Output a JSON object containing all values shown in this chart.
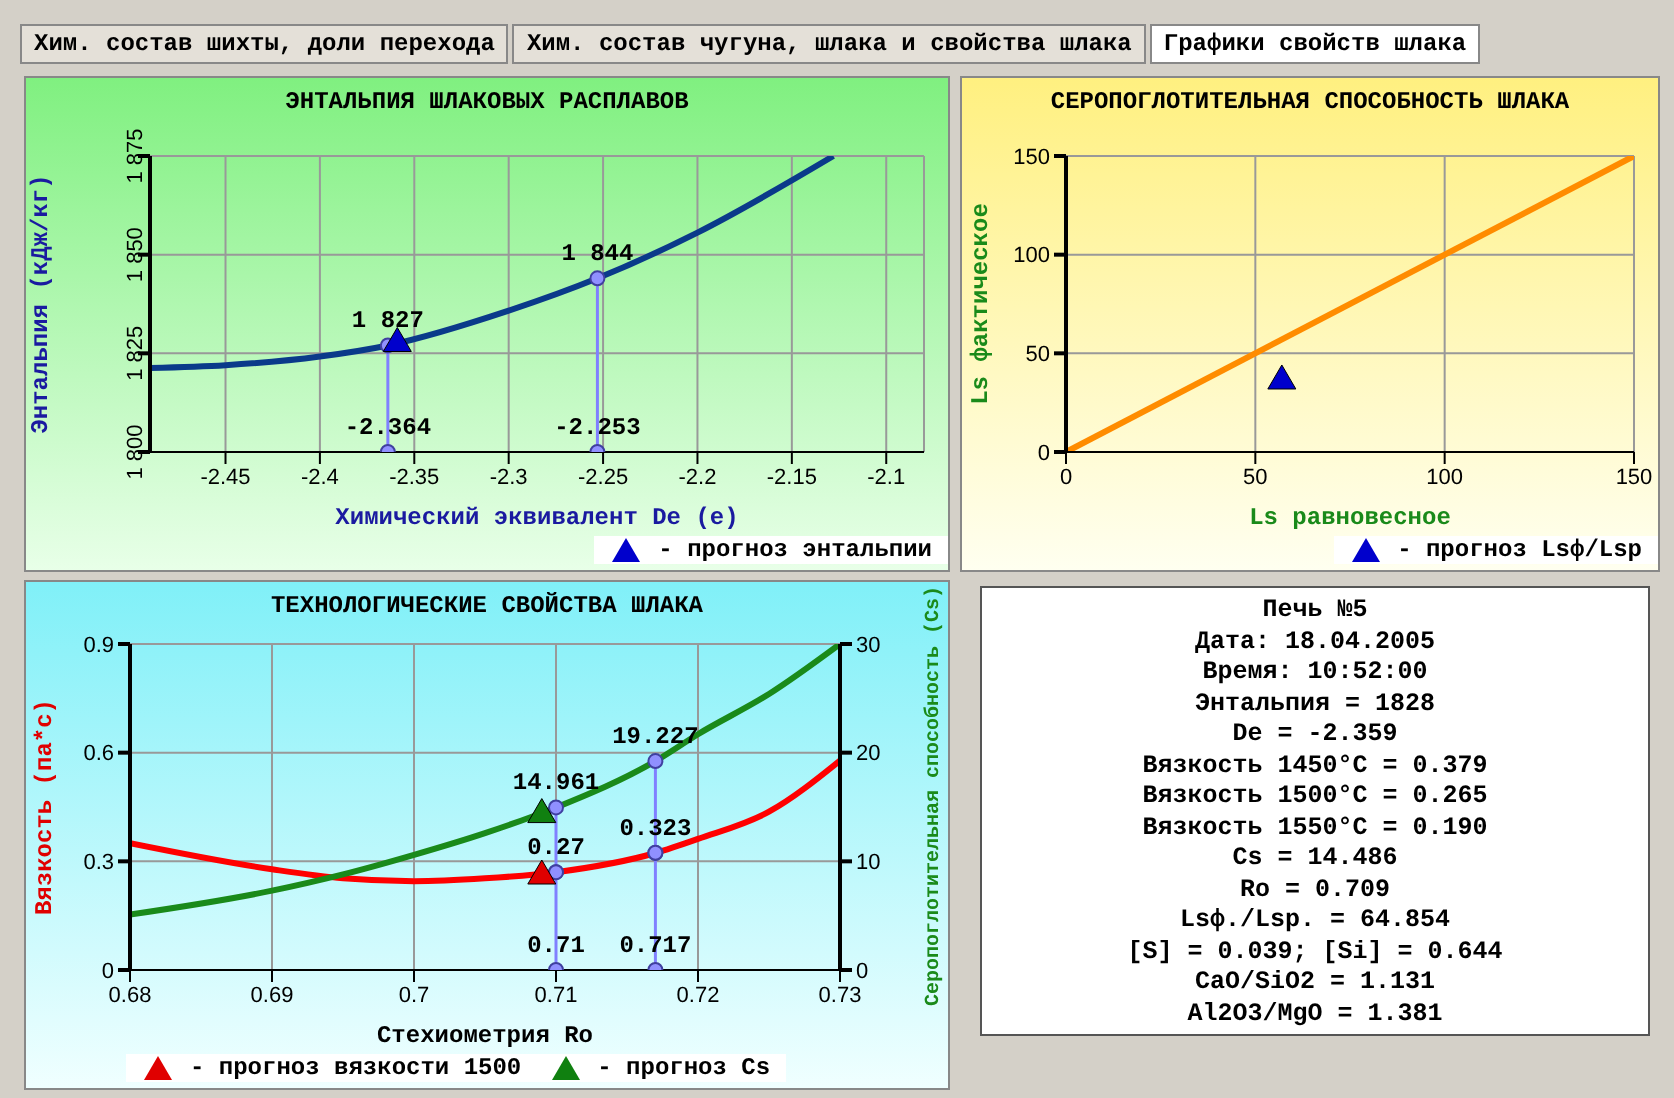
{
  "chart_data": [
    {
      "type": "other",
      "annotations": [
        "Хим. состав шихты, доли перехода",
        "Хим. состав чугуна, шлака и свойства шлака",
        "Графики свойств шлака"
      ]
    },
    {
      "type": "line",
      "title": "ЭНТАЛЬПИЯ ШЛАКОВЫХ РАСПЛАВОВ",
      "annotations": [
        {
          "text": "-2.364",
          "x": -2.364,
          "y": 1800
        },
        {
          "text": "-2.253",
          "x": -2.253,
          "y": 1800
        }
      ],
      "xlabel": "Химический эквивалент De (e)",
      "ylabel": "Энтальпия (кДж/кг)",
      "xlim": [
        -2.49,
        -2.08
      ],
      "xticks": [
        -2.45,
        -2.4,
        -2.35,
        -2.3,
        -2.25,
        -2.2,
        -2.15,
        -2.1
      ],
      "ylim": [
        1800,
        1875
      ],
      "yticks": [
        {
          "value": 1800,
          "label": "1 800"
        },
        {
          "value": 1825,
          "label": "1 825"
        },
        {
          "value": 1850,
          "label": "1 850"
        },
        {
          "value": 1875,
          "label": "1 875"
        }
      ],
      "grid": true,
      "legend": "bottom right",
      "series": [
        {
          "color": "#0a3a8a",
          "marker": "none",
          "x": [
            -2.49,
            -2.45,
            -2.4,
            -2.364,
            -2.3,
            -2.253,
            -2.2,
            -2.128
          ],
          "values": [
            1821.3,
            1822,
            1824.2,
            1827,
            1835.8,
            1844,
            1855.6,
            1875
          ]
        },
        {
          "color": "#8080ff",
          "marker": "circle",
          "x": [
            -2.364,
            -2.364
          ],
          "values": [
            1800,
            1827
          ],
          "value_labels": [
            null,
            "1 827"
          ]
        },
        {
          "color": "#8080ff",
          "marker": "circle",
          "x": [
            -2.253,
            -2.253
          ],
          "values": [
            1800,
            1844
          ],
          "value_labels": [
            null,
            "1 844"
          ]
        },
        {
          "type": "scatter",
          "name": "- прогноз энтальпии",
          "color": "#0000cc",
          "marker": "triangle",
          "x": [
            -2.359
          ],
          "values": [
            1828
          ]
        }
      ]
    },
    {
      "type": "line",
      "title": "СЕРОПОГЛОТИТЕЛЬНАЯ СПОСОБНОСТЬ ШЛАКА",
      "xlabel": "Ls равновесное",
      "ylabel": "Ls фактическое",
      "xlim": [
        0,
        150
      ],
      "xticks": [
        0,
        50,
        100,
        150
      ],
      "ylim": [
        0,
        150
      ],
      "yticks": [
        0,
        50,
        100,
        150
      ],
      "grid": true,
      "legend": "bottom right",
      "series": [
        {
          "color": "#ff8c00",
          "marker": "none",
          "x": [
            0,
            150
          ],
          "values": [
            0,
            150
          ]
        },
        {
          "type": "scatter",
          "name": "- прогноз Lsф/Lsp",
          "color": "#0000cc",
          "marker": "triangle",
          "x": [
            57
          ],
          "values": [
            37
          ]
        }
      ]
    },
    {
      "type": "line",
      "title": "ТЕХНОЛОГИЧЕСКИЕ СВОЙСТВА ШЛАКА",
      "annotations": [
        {
          "text": "0.71",
          "x": 0.71,
          "y": 0
        },
        {
          "text": "0.717",
          "x": 0.717,
          "y": 0
        }
      ],
      "xlabel": "Стехиометрия Ro",
      "ylabel": "Вязкость (па*с)",
      "y2label": "Серопоглотительная способность (Cs)",
      "xlim": [
        0.68,
        0.73
      ],
      "xticks": [
        0.68,
        0.69,
        0.7,
        0.71,
        0.72,
        0.73
      ],
      "ylim": [
        0,
        0.9
      ],
      "yticks": [
        0,
        0.3,
        0.6,
        0.9
      ],
      "y2lim": [
        0,
        30
      ],
      "y2ticks": [
        0,
        10,
        20,
        30
      ],
      "grid": true,
      "legend": "bottom",
      "series": [
        {
          "color": "#ff0000",
          "marker": "none",
          "x": [
            0.68,
            0.69,
            0.695,
            0.7,
            0.705,
            0.71,
            0.717,
            0.72,
            0.725,
            0.73
          ],
          "values": [
            0.35,
            0.278,
            0.253,
            0.245,
            0.253,
            0.27,
            0.323,
            0.362,
            0.437,
            0.578
          ]
        },
        {
          "color": "#1a8a1a",
          "marker": "none",
          "axis": "y2",
          "x": [
            0.68,
            0.69,
            0.695,
            0.7,
            0.705,
            0.71,
            0.717,
            0.72,
            0.725,
            0.73
          ],
          "values": [
            5.1,
            7.3,
            8.8,
            10.6,
            12.6,
            14.961,
            19.227,
            21.7,
            25.4,
            30
          ]
        },
        {
          "color": "#8080ff",
          "marker": "circle",
          "x": [
            0.71,
            0.71
          ],
          "values": [
            0,
            0.27
          ],
          "value_labels": [
            null,
            "0.27"
          ]
        },
        {
          "color": "#8080ff",
          "marker": "circle",
          "axis": "y2",
          "x": [
            0.71,
            0.71
          ],
          "values": [
            9,
            14.961
          ],
          "value_labels": [
            null,
            "14.961"
          ]
        },
        {
          "color": "#8080ff",
          "marker": "circle",
          "x": [
            0.717,
            0.717
          ],
          "values": [
            0,
            0.323
          ],
          "value_labels": [
            null,
            "0.323"
          ]
        },
        {
          "color": "#8080ff",
          "marker": "circle",
          "axis": "y2",
          "x": [
            0.717,
            0.717
          ],
          "values": [
            10.8,
            19.227
          ],
          "value_labels": [
            null,
            "19.227"
          ]
        },
        {
          "type": "scatter",
          "name": "- прогноз вязкости 1500",
          "color": "#e00000",
          "marker": "triangle",
          "x": [
            0.709
          ],
          "values": [
            0.265
          ]
        },
        {
          "type": "scatter",
          "name": "- прогноз Cs",
          "color": "#108010",
          "marker": "triangle",
          "axis": "y2",
          "x": [
            0.709
          ],
          "values": [
            14.486
          ]
        }
      ]
    },
    {
      "type": "other",
      "title": "Печь №5",
      "annotations": [
        "Дата: 18.04.2005",
        "Время: 10:52:00",
        "Энтальпия = 1828",
        "De = -2.359",
        "Вязкость 1450°C = 0.379",
        "Вязкость 1500°C = 0.265",
        "Вязкость 1550°C = 0.190",
        "Cs = 14.486",
        "Ro = 0.709",
        "Lsф./Lsp. = 64.854",
        "[S] = 0.039; [Si] = 0.644",
        "CaO/SiO2 = 1.131",
        "Al2O3/MgO = 1.381"
      ]
    }
  ]
}
